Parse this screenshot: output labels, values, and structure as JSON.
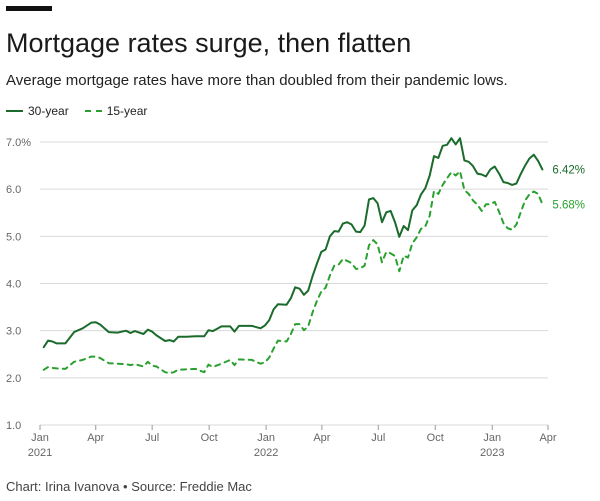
{
  "header": {
    "title": "Mortgage rates surge, then flatten",
    "subtitle": "Average mortgage rates have more than doubled from their pandemic lows."
  },
  "footer": {
    "credit": "Chart: Irina Ivanova • Source: Freddie Mac"
  },
  "colors": {
    "series_30yr": "#1a6b2c",
    "series_15yr": "#2aa12f",
    "grid": "#d9d9d9",
    "axis_text": "#666666"
  },
  "chart_data": {
    "type": "line",
    "title": "Mortgage rates surge, then flatten",
    "subtitle": "Average mortgage rates have more than doubled from their pandemic lows.",
    "xlabel": "",
    "ylabel": "",
    "ylim": [
      1.0,
      7.0
    ],
    "yticks": [
      1.0,
      2.0,
      3.0,
      4.0,
      5.0,
      6.0,
      7.0
    ],
    "ytick_labels": [
      "1.0",
      "2.0",
      "3.0",
      "4.0",
      "5.0",
      "6.0",
      "7.0%"
    ],
    "xlim": [
      "2021-01-01",
      "2023-04-01"
    ],
    "xticks": [
      {
        "date": "2021-01-01",
        "label": "Jan",
        "sublabel": "2021"
      },
      {
        "date": "2021-04-01",
        "label": "Apr",
        "sublabel": ""
      },
      {
        "date": "2021-07-01",
        "label": "Jul",
        "sublabel": ""
      },
      {
        "date": "2021-10-01",
        "label": "Oct",
        "sublabel": ""
      },
      {
        "date": "2022-01-01",
        "label": "Jan",
        "sublabel": "2022"
      },
      {
        "date": "2022-04-01",
        "label": "Apr",
        "sublabel": ""
      },
      {
        "date": "2022-07-01",
        "label": "Jul",
        "sublabel": ""
      },
      {
        "date": "2022-10-01",
        "label": "Oct",
        "sublabel": ""
      },
      {
        "date": "2023-01-01",
        "label": "Jan",
        "sublabel": "2023"
      },
      {
        "date": "2023-04-01",
        "label": "Apr",
        "sublabel": ""
      }
    ],
    "grid": true,
    "legend": "top-left",
    "series": [
      {
        "name": "30-year",
        "style": "solid",
        "end_label": "6.42%",
        "points": [
          [
            "2021-01-07",
            2.65
          ],
          [
            "2021-01-14",
            2.79
          ],
          [
            "2021-01-21",
            2.77
          ],
          [
            "2021-01-28",
            2.73
          ],
          [
            "2021-02-11",
            2.73
          ],
          [
            "2021-02-25",
            2.97
          ],
          [
            "2021-03-11",
            3.05
          ],
          [
            "2021-03-25",
            3.17
          ],
          [
            "2021-04-01",
            3.18
          ],
          [
            "2021-04-08",
            3.13
          ],
          [
            "2021-04-22",
            2.97
          ],
          [
            "2021-05-06",
            2.96
          ],
          [
            "2021-05-20",
            3.0
          ],
          [
            "2021-05-27",
            2.95
          ],
          [
            "2021-06-03",
            2.99
          ],
          [
            "2021-06-17",
            2.93
          ],
          [
            "2021-06-24",
            3.02
          ],
          [
            "2021-07-01",
            2.98
          ],
          [
            "2021-07-08",
            2.9
          ],
          [
            "2021-07-22",
            2.78
          ],
          [
            "2021-07-29",
            2.8
          ],
          [
            "2021-08-05",
            2.77
          ],
          [
            "2021-08-12",
            2.87
          ],
          [
            "2021-08-26",
            2.87
          ],
          [
            "2021-09-09",
            2.88
          ],
          [
            "2021-09-23",
            2.88
          ],
          [
            "2021-09-30",
            3.01
          ],
          [
            "2021-10-07",
            2.99
          ],
          [
            "2021-10-21",
            3.09
          ],
          [
            "2021-11-04",
            3.09
          ],
          [
            "2021-11-11",
            2.98
          ],
          [
            "2021-11-18",
            3.1
          ],
          [
            "2021-12-09",
            3.1
          ],
          [
            "2021-12-23",
            3.05
          ],
          [
            "2021-12-30",
            3.11
          ],
          [
            "2022-01-06",
            3.22
          ],
          [
            "2022-01-13",
            3.45
          ],
          [
            "2022-01-20",
            3.56
          ],
          [
            "2022-02-03",
            3.55
          ],
          [
            "2022-02-10",
            3.69
          ],
          [
            "2022-02-17",
            3.92
          ],
          [
            "2022-02-24",
            3.89
          ],
          [
            "2022-03-03",
            3.76
          ],
          [
            "2022-03-10",
            3.85
          ],
          [
            "2022-03-17",
            4.16
          ],
          [
            "2022-03-24",
            4.42
          ],
          [
            "2022-03-31",
            4.67
          ],
          [
            "2022-04-07",
            4.72
          ],
          [
            "2022-04-14",
            5.0
          ],
          [
            "2022-04-21",
            5.11
          ],
          [
            "2022-04-28",
            5.1
          ],
          [
            "2022-05-05",
            5.27
          ],
          [
            "2022-05-12",
            5.3
          ],
          [
            "2022-05-19",
            5.25
          ],
          [
            "2022-05-26",
            5.1
          ],
          [
            "2022-06-02",
            5.09
          ],
          [
            "2022-06-09",
            5.23
          ],
          [
            "2022-06-16",
            5.78
          ],
          [
            "2022-06-23",
            5.81
          ],
          [
            "2022-06-30",
            5.7
          ],
          [
            "2022-07-07",
            5.3
          ],
          [
            "2022-07-14",
            5.51
          ],
          [
            "2022-07-21",
            5.54
          ],
          [
            "2022-07-28",
            5.3
          ],
          [
            "2022-08-04",
            4.99
          ],
          [
            "2022-08-11",
            5.22
          ],
          [
            "2022-08-18",
            5.13
          ],
          [
            "2022-08-25",
            5.55
          ],
          [
            "2022-09-01",
            5.66
          ],
          [
            "2022-09-08",
            5.89
          ],
          [
            "2022-09-15",
            6.02
          ],
          [
            "2022-09-22",
            6.29
          ],
          [
            "2022-09-29",
            6.7
          ],
          [
            "2022-10-06",
            6.66
          ],
          [
            "2022-10-13",
            6.92
          ],
          [
            "2022-10-20",
            6.94
          ],
          [
            "2022-10-27",
            7.08
          ],
          [
            "2022-11-03",
            6.95
          ],
          [
            "2022-11-10",
            7.08
          ],
          [
            "2022-11-17",
            6.61
          ],
          [
            "2022-11-24",
            6.58
          ],
          [
            "2022-12-01",
            6.49
          ],
          [
            "2022-12-08",
            6.33
          ],
          [
            "2022-12-15",
            6.31
          ],
          [
            "2022-12-22",
            6.27
          ],
          [
            "2022-12-29",
            6.42
          ],
          [
            "2023-01-05",
            6.48
          ],
          [
            "2023-01-12",
            6.33
          ],
          [
            "2023-01-19",
            6.15
          ],
          [
            "2023-01-26",
            6.13
          ],
          [
            "2023-02-02",
            6.09
          ],
          [
            "2023-02-09",
            6.12
          ],
          [
            "2023-02-16",
            6.32
          ],
          [
            "2023-02-23",
            6.5
          ],
          [
            "2023-03-02",
            6.65
          ],
          [
            "2023-03-09",
            6.73
          ],
          [
            "2023-03-16",
            6.6
          ],
          [
            "2023-03-23",
            6.42
          ]
        ]
      },
      {
        "name": "15-year",
        "style": "dashed",
        "end_label": "5.68%",
        "points": [
          [
            "2021-01-07",
            2.17
          ],
          [
            "2021-01-14",
            2.23
          ],
          [
            "2021-01-21",
            2.21
          ],
          [
            "2021-01-28",
            2.2
          ],
          [
            "2021-02-11",
            2.19
          ],
          [
            "2021-02-25",
            2.34
          ],
          [
            "2021-03-11",
            2.38
          ],
          [
            "2021-03-25",
            2.45
          ],
          [
            "2021-04-01",
            2.45
          ],
          [
            "2021-04-08",
            2.42
          ],
          [
            "2021-04-22",
            2.31
          ],
          [
            "2021-05-06",
            2.3
          ],
          [
            "2021-05-20",
            2.29
          ],
          [
            "2021-05-27",
            2.27
          ],
          [
            "2021-06-03",
            2.29
          ],
          [
            "2021-06-17",
            2.24
          ],
          [
            "2021-06-24",
            2.34
          ],
          [
            "2021-07-01",
            2.26
          ],
          [
            "2021-07-08",
            2.24
          ],
          [
            "2021-07-22",
            2.12
          ],
          [
            "2021-07-29",
            2.1
          ],
          [
            "2021-08-05",
            2.12
          ],
          [
            "2021-08-12",
            2.17
          ],
          [
            "2021-08-26",
            2.18
          ],
          [
            "2021-09-09",
            2.19
          ],
          [
            "2021-09-23",
            2.12
          ],
          [
            "2021-09-30",
            2.28
          ],
          [
            "2021-10-07",
            2.23
          ],
          [
            "2021-10-21",
            2.3
          ],
          [
            "2021-11-04",
            2.38
          ],
          [
            "2021-11-11",
            2.27
          ],
          [
            "2021-11-18",
            2.39
          ],
          [
            "2021-12-09",
            2.38
          ],
          [
            "2021-12-23",
            2.3
          ],
          [
            "2021-12-30",
            2.33
          ],
          [
            "2022-01-06",
            2.43
          ],
          [
            "2022-01-13",
            2.62
          ],
          [
            "2022-01-20",
            2.79
          ],
          [
            "2022-02-03",
            2.77
          ],
          [
            "2022-02-10",
            2.93
          ],
          [
            "2022-02-17",
            3.14
          ],
          [
            "2022-02-24",
            3.14
          ],
          [
            "2022-03-03",
            3.01
          ],
          [
            "2022-03-10",
            3.09
          ],
          [
            "2022-03-17",
            3.39
          ],
          [
            "2022-03-24",
            3.63
          ],
          [
            "2022-03-31",
            3.83
          ],
          [
            "2022-04-07",
            3.91
          ],
          [
            "2022-04-14",
            4.17
          ],
          [
            "2022-04-21",
            4.38
          ],
          [
            "2022-04-28",
            4.4
          ],
          [
            "2022-05-05",
            4.52
          ],
          [
            "2022-05-12",
            4.48
          ],
          [
            "2022-05-19",
            4.43
          ],
          [
            "2022-05-26",
            4.31
          ],
          [
            "2022-06-02",
            4.32
          ],
          [
            "2022-06-09",
            4.38
          ],
          [
            "2022-06-16",
            4.81
          ],
          [
            "2022-06-23",
            4.92
          ],
          [
            "2022-06-30",
            4.83
          ],
          [
            "2022-07-07",
            4.45
          ],
          [
            "2022-07-14",
            4.67
          ],
          [
            "2022-07-21",
            4.64
          ],
          [
            "2022-07-28",
            4.58
          ],
          [
            "2022-08-04",
            4.26
          ],
          [
            "2022-08-11",
            4.59
          ],
          [
            "2022-08-18",
            4.55
          ],
          [
            "2022-08-25",
            4.85
          ],
          [
            "2022-09-01",
            4.98
          ],
          [
            "2022-09-08",
            5.16
          ],
          [
            "2022-09-15",
            5.21
          ],
          [
            "2022-09-22",
            5.44
          ],
          [
            "2022-09-29",
            5.96
          ],
          [
            "2022-10-06",
            5.9
          ],
          [
            "2022-10-13",
            6.09
          ],
          [
            "2022-10-20",
            6.23
          ],
          [
            "2022-10-27",
            6.36
          ],
          [
            "2022-11-03",
            6.29
          ],
          [
            "2022-11-10",
            6.38
          ],
          [
            "2022-11-17",
            5.98
          ],
          [
            "2022-11-24",
            5.9
          ],
          [
            "2022-12-01",
            5.76
          ],
          [
            "2022-12-08",
            5.67
          ],
          [
            "2022-12-15",
            5.54
          ],
          [
            "2022-12-22",
            5.68
          ],
          [
            "2022-12-29",
            5.68
          ],
          [
            "2023-01-05",
            5.73
          ],
          [
            "2023-01-12",
            5.52
          ],
          [
            "2023-01-19",
            5.28
          ],
          [
            "2023-01-26",
            5.17
          ],
          [
            "2023-02-02",
            5.14
          ],
          [
            "2023-02-09",
            5.25
          ],
          [
            "2023-02-16",
            5.51
          ],
          [
            "2023-02-23",
            5.76
          ],
          [
            "2023-03-02",
            5.89
          ],
          [
            "2023-03-09",
            5.95
          ],
          [
            "2023-03-16",
            5.9
          ],
          [
            "2023-03-23",
            5.68
          ]
        ]
      }
    ]
  }
}
